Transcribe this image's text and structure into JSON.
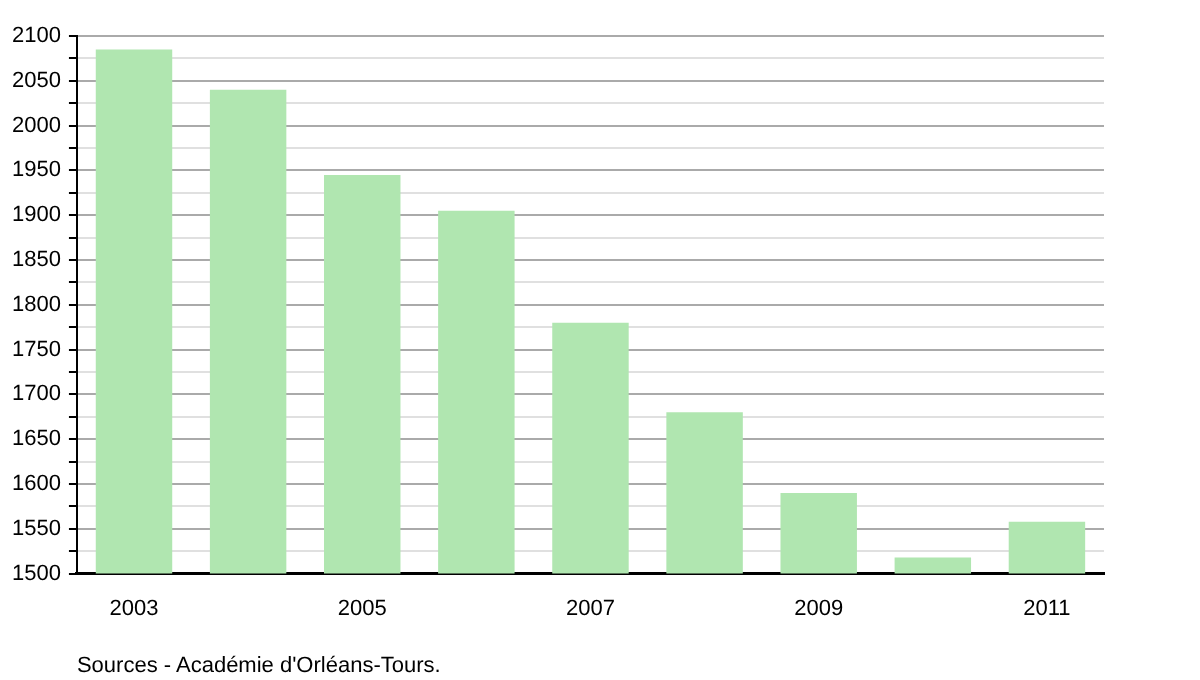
{
  "chart_data": {
    "type": "bar",
    "categories": [
      "2003",
      null,
      "2005",
      null,
      "2007",
      null,
      "2009",
      null,
      "2011"
    ],
    "values": [
      2085,
      2040,
      1945,
      1905,
      1780,
      1680,
      1590,
      1518,
      1558
    ],
    "color": "#b0e6b0",
    "ylim": [
      1500,
      2100
    ],
    "yticks": [
      1500,
      {
        "value": 1525,
        "label": null
      },
      1550,
      {
        "value": 1575,
        "label": null
      },
      1600,
      {
        "value": 1625,
        "label": null
      },
      1650,
      {
        "value": 1675,
        "label": null
      },
      1700,
      {
        "value": 1725,
        "label": null
      },
      1750,
      {
        "value": 1775,
        "label": null
      },
      1800,
      {
        "value": 1825,
        "label": null
      },
      1850,
      {
        "value": 1875,
        "label": null
      },
      1900,
      {
        "value": 1925,
        "label": null
      },
      1950,
      {
        "value": 1975,
        "label": null
      },
      2000,
      {
        "value": 2025,
        "label": null
      },
      2050,
      {
        "value": 2075,
        "label": null
      },
      2100
    ],
    "grid": "y",
    "legend": false,
    "annotations": [
      "Sources - Académie d'Orléans-Tours."
    ]
  }
}
